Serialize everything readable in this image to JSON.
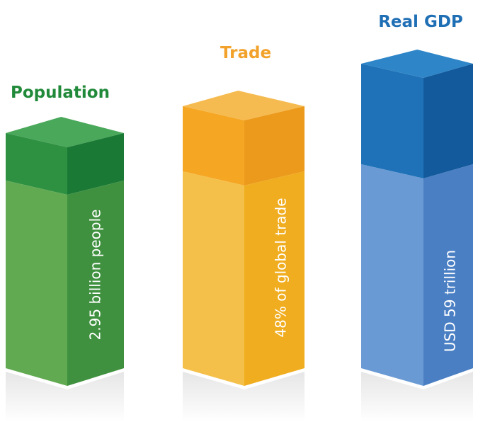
{
  "columns": [
    {
      "title": "Population",
      "label": "2.95 billion people"
    },
    {
      "title": "Trade",
      "label": "48% of global trade"
    },
    {
      "title": "Real GDP",
      "label": "USD 59 trillion"
    }
  ]
}
